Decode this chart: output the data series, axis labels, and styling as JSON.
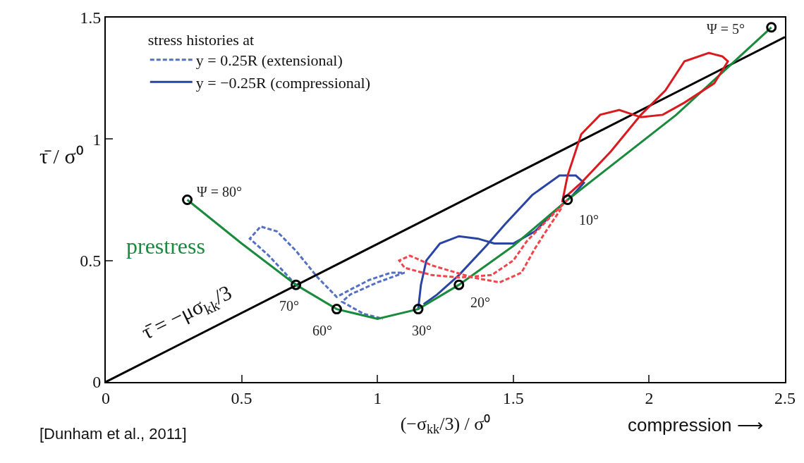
{
  "chart_data": {
    "type": "line",
    "xlabel": "(−σ$_{kk}$/3) / σ⁰",
    "ylabel": "τ̄ / σ⁰",
    "legend_title": "stress histories at",
    "xlim": [
      0,
      2.5
    ],
    "ylim": [
      0,
      1.5
    ],
    "xticks": [
      0,
      0.5,
      1,
      1.5,
      2,
      2.5
    ],
    "yticks": [
      0,
      0.5,
      1,
      1.5
    ],
    "legend": "top left",
    "series": [
      {
        "name": "y = 0.25R (extensional)",
        "color": "#5470c4",
        "line_style": "dashed",
        "marker": "none",
        "x": [
          0.7,
          0.6,
          0.53,
          0.57,
          0.63,
          0.7,
          0.78,
          0.85,
          0.9,
          0.97,
          1.05,
          1.1,
          1.0,
          0.9,
          0.87,
          0.95,
          1.02
        ],
        "values": [
          0.4,
          0.52,
          0.59,
          0.64,
          0.62,
          0.54,
          0.43,
          0.35,
          0.38,
          0.42,
          0.45,
          0.45,
          0.41,
          0.36,
          0.33,
          0.28,
          0.26
        ]
      },
      {
        "name": "y = −0.25R (compressional)",
        "color": "#2a44a4",
        "line_style": "solid",
        "marker": "none",
        "x": [
          1.15,
          1.16,
          1.18,
          1.23,
          1.3,
          1.37,
          1.43,
          1.5,
          1.58,
          1.65,
          1.72,
          1.76,
          1.73,
          1.67,
          1.57,
          1.47,
          1.4,
          1.3,
          1.22,
          1.17
        ],
        "values": [
          0.3,
          0.4,
          0.5,
          0.57,
          0.6,
          0.59,
          0.57,
          0.57,
          0.62,
          0.7,
          0.77,
          0.82,
          0.85,
          0.85,
          0.77,
          0.65,
          0.56,
          0.44,
          0.36,
          0.32
        ]
      },
      {
        "color": "#000000",
        "line_style": "solid",
        "marker": "none",
        "x": [
          0,
          2.5
        ],
        "values": [
          0,
          1.42
        ]
      },
      {
        "color": "#1a8a3c",
        "line_style": "solid",
        "marker": "none",
        "x": [
          0.3,
          0.5,
          0.7,
          0.85,
          1.0,
          1.15,
          1.3,
          1.5,
          1.7,
          2.1,
          2.45
        ],
        "values": [
          0.75,
          0.57,
          0.4,
          0.3,
          0.26,
          0.3,
          0.4,
          0.56,
          0.75,
          1.1,
          1.46
        ]
      },
      {
        "color": "#f2444a",
        "line_style": "dashed",
        "marker": "none",
        "x": [
          1.7,
          1.62,
          1.55,
          1.5,
          1.42,
          1.3,
          1.2,
          1.1,
          1.08,
          1.12,
          1.2,
          1.35,
          1.45,
          1.53,
          1.58,
          1.62,
          1.68
        ],
        "values": [
          0.75,
          0.66,
          0.58,
          0.5,
          0.44,
          0.43,
          0.44,
          0.47,
          0.5,
          0.52,
          0.48,
          0.43,
          0.41,
          0.45,
          0.55,
          0.62,
          0.72
        ]
      },
      {
        "color": "#d91a1f",
        "line_style": "solid",
        "marker": "none",
        "x": [
          1.68,
          1.7,
          1.75,
          1.82,
          1.89,
          1.97,
          2.05,
          2.13,
          2.24,
          2.29,
          2.27,
          2.22,
          2.13,
          2.06,
          1.97,
          1.86,
          1.75,
          1.69
        ],
        "values": [
          0.74,
          0.85,
          1.02,
          1.1,
          1.12,
          1.09,
          1.1,
          1.15,
          1.23,
          1.32,
          1.34,
          1.355,
          1.32,
          1.2,
          1.1,
          0.95,
          0.82,
          0.76
        ]
      },
      {
        "type": "scatter",
        "color": "#000000",
        "marker": "circle",
        "x": [
          0.3,
          0.7,
          0.85,
          1.15,
          1.3,
          1.7,
          2.45
        ],
        "values": [
          0.75,
          0.4,
          0.3,
          0.3,
          0.4,
          0.75,
          1.46
        ]
      }
    ],
    "annotations": [
      {
        "text": "Ψ = 80°",
        "x": 0.3,
        "y": 0.75
      },
      {
        "text": "70°",
        "x": 0.7,
        "y": 0.4
      },
      {
        "text": "60°",
        "x": 0.85,
        "y": 0.3
      },
      {
        "text": "30°",
        "x": 1.15,
        "y": 0.3
      },
      {
        "text": "20°",
        "x": 1.3,
        "y": 0.4
      },
      {
        "text": "10°",
        "x": 1.7,
        "y": 0.75
      },
      {
        "text": "Ψ = 5°",
        "x": 2.45,
        "y": 1.46
      },
      "prestress",
      "τ̄ = −μσ$_{kk}$/3",
      "[Dunham et al., 2011]",
      "compression ⟶"
    ]
  }
}
